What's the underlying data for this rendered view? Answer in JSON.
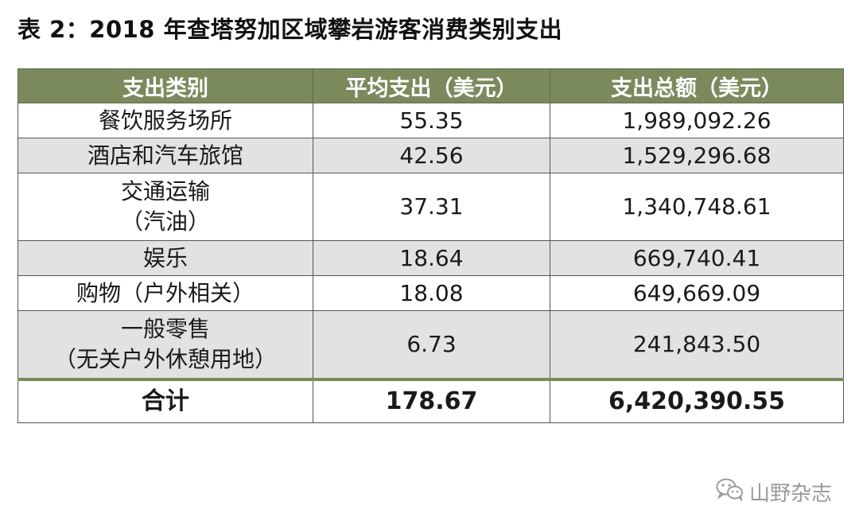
{
  "title": "表 2：2018 年查塔努加区域攀岩游客消费类别支出",
  "table": {
    "headers": [
      "支出类别",
      "平均支出（美元）",
      "支出总额（美元）"
    ],
    "rows": [
      {
        "category": [
          "餐饮服务场所"
        ],
        "average": "55.35",
        "total": "1,989,092.26"
      },
      {
        "category": [
          "酒店和汽车旅馆"
        ],
        "average": "42.56",
        "total": "1,529,296.68"
      },
      {
        "category": [
          "交通运输",
          "（汽油）"
        ],
        "average": "37.31",
        "total": "1,340,748.61"
      },
      {
        "category": [
          "娱乐"
        ],
        "average": "18.64",
        "total": "669,740.41"
      },
      {
        "category": [
          "购物（户外相关）"
        ],
        "average": "18.08",
        "total": "649,669.09"
      },
      {
        "category": [
          "一般零售",
          "（无关户外休憩用地）"
        ],
        "average": "6.73",
        "total": "241,843.50"
      }
    ],
    "total_row": {
      "label": "合计",
      "average": "178.67",
      "total": "6,420,390.55"
    }
  },
  "watermark": {
    "text": "山野杂志",
    "icon": "wechat-icon"
  },
  "colors": {
    "header_bg": "#7a8a5c",
    "stripe_bg": "#e2e2e2"
  }
}
